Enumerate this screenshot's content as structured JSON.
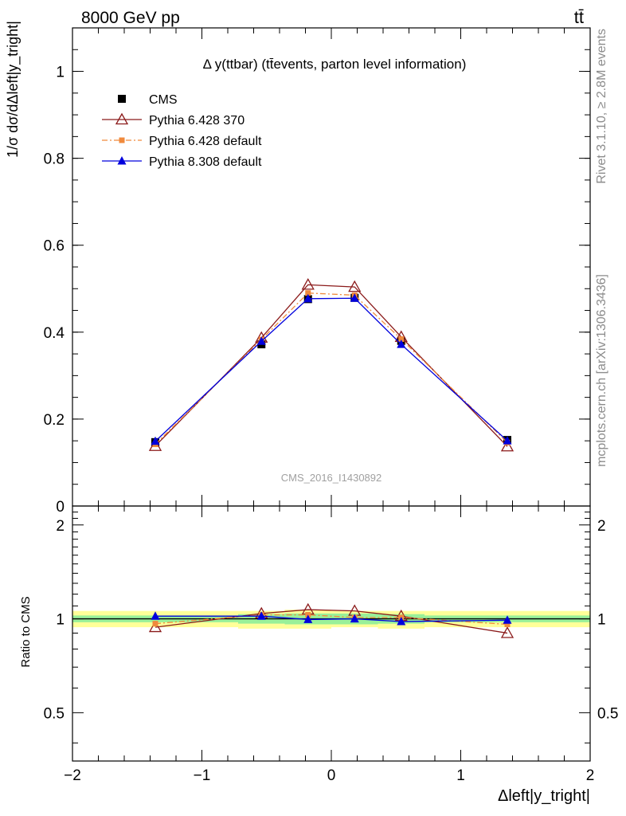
{
  "header": {
    "energy_label": "8000 GeV pp",
    "process_label": "tt̄"
  },
  "side_labels": {
    "rivet": "Rivet 3.1.10, ≥ 2.8M events",
    "mcplots": "mcplots.cern.ch [arXiv:1306.3436]"
  },
  "chart_data": [
    {
      "type": "line",
      "panel": "main",
      "title": "Δ y(ttbar) (tt̄events, parton level information)",
      "xlabel": "Δleft|y_tright|",
      "ylabel": "1/σ dσ/dΔleft|y_tright|",
      "analysis_label": "CMS_2016_I1430892",
      "xlim": [
        -2,
        2
      ],
      "ylim": [
        0,
        1.1
      ],
      "yticks": [
        0,
        0.2,
        0.4,
        0.6,
        0.8,
        1
      ],
      "ytick_labels": [
        "0",
        "0.2",
        "0.4",
        "0.6",
        "0.8",
        "1"
      ],
      "x": [
        -1.36,
        -0.54,
        -0.18,
        0.18,
        0.54,
        1.36
      ],
      "legend_position": "top-left",
      "series": [
        {
          "name": "CMS",
          "color": "#000000",
          "marker": "square",
          "values": [
            0.147,
            0.372,
            0.476,
            0.479,
            0.38,
            0.152
          ]
        },
        {
          "name": "Pythia 6.428 370",
          "color": "#8b1a1a",
          "marker": "triangle-open",
          "values": [
            0.138,
            0.387,
            0.509,
            0.504,
            0.389,
            0.137
          ]
        },
        {
          "name": "Pythia 6.428 default",
          "color": "#f08a3c",
          "marker": "square-small",
          "dashed": true,
          "values": [
            0.142,
            0.383,
            0.49,
            0.485,
            0.384,
            0.146
          ]
        },
        {
          "name": "Pythia 8.308 default",
          "color": "#0000dd",
          "marker": "triangle",
          "values": [
            0.149,
            0.379,
            0.477,
            0.478,
            0.372,
            0.15
          ]
        }
      ]
    },
    {
      "type": "line",
      "panel": "ratio",
      "ylabel": "Ratio to CMS",
      "xlabel": "Δleft|y_tright|",
      "xlim": [
        -2,
        2
      ],
      "ylim": [
        0.35,
        2.3
      ],
      "yticks": [
        0.5,
        1,
        2
      ],
      "ytick_labels": [
        "0.5",
        "1",
        "2"
      ],
      "xticks": [
        -2,
        -1,
        0,
        1,
        2
      ],
      "xtick_labels": [
        "−2",
        "−1",
        "0",
        "1",
        "2"
      ],
      "x": [
        -1.36,
        -0.54,
        -0.18,
        0.18,
        0.54,
        1.36
      ],
      "bands": [
        {
          "name": "total uncertainty",
          "color": "#ffff99",
          "edges": [
            -2,
            -0.72,
            -0.36,
            0,
            0.36,
            0.72,
            2
          ],
          "lo": [
            0.94,
            0.93,
            0.93,
            0.94,
            0.93,
            0.94
          ],
          "hi": [
            1.06,
            1.06,
            1.07,
            1.06,
            1.06,
            1.06
          ]
        },
        {
          "name": "stat uncertainty",
          "color": "#99f099",
          "edges": [
            -2,
            -0.72,
            -0.36,
            0,
            0.36,
            0.72,
            2
          ],
          "lo": [
            0.975,
            0.965,
            0.96,
            0.96,
            0.965,
            0.975
          ],
          "hi": [
            1.025,
            1.035,
            1.04,
            1.04,
            1.035,
            1.025
          ]
        }
      ],
      "series": [
        {
          "name": "Pythia 6.428 370",
          "color": "#8b1a1a",
          "marker": "triangle-open",
          "values": [
            0.94,
            1.04,
            1.07,
            1.06,
            1.02,
            0.9
          ]
        },
        {
          "name": "Pythia 6.428 default",
          "color": "#f08a3c",
          "marker": "square-small",
          "dashed": true,
          "values": [
            0.965,
            1.03,
            1.03,
            1.01,
            1.01,
            0.96
          ]
        },
        {
          "name": "Pythia 8.308 default",
          "color": "#0000dd",
          "marker": "triangle",
          "values": [
            1.02,
            1.02,
            0.995,
            1.0,
            0.98,
            0.99
          ]
        }
      ]
    }
  ]
}
